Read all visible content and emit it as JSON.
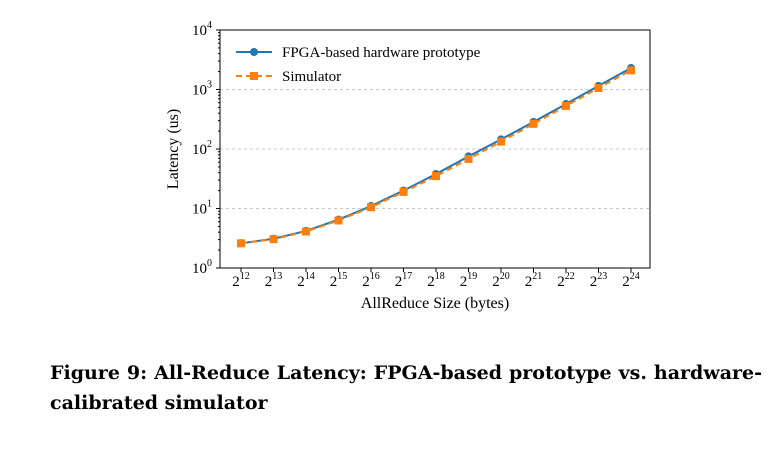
{
  "chart_data": {
    "type": "line",
    "xlabel": "AllReduce Size (bytes)",
    "ylabel": "Latency (us)",
    "x_scale": "log2",
    "y_scale": "log10",
    "categories": [
      "2^12",
      "2^13",
      "2^14",
      "2^15",
      "2^16",
      "2^17",
      "2^18",
      "2^19",
      "2^20",
      "2^21",
      "2^22",
      "2^23",
      "2^24"
    ],
    "x_tick_labels": [
      {
        "base": "2",
        "exp": "12"
      },
      {
        "base": "2",
        "exp": "13"
      },
      {
        "base": "2",
        "exp": "14"
      },
      {
        "base": "2",
        "exp": "15"
      },
      {
        "base": "2",
        "exp": "16"
      },
      {
        "base": "2",
        "exp": "17"
      },
      {
        "base": "2",
        "exp": "18"
      },
      {
        "base": "2",
        "exp": "19"
      },
      {
        "base": "2",
        "exp": "20"
      },
      {
        "base": "2",
        "exp": "21"
      },
      {
        "base": "2",
        "exp": "22"
      },
      {
        "base": "2",
        "exp": "23"
      },
      {
        "base": "2",
        "exp": "24"
      }
    ],
    "y_tick_labels": [
      {
        "base": "10",
        "exp": "0",
        "value": 1
      },
      {
        "base": "10",
        "exp": "1",
        "value": 10
      },
      {
        "base": "10",
        "exp": "2",
        "value": 100
      },
      {
        "base": "10",
        "exp": "3",
        "value": 1000
      },
      {
        "base": "10",
        "exp": "4",
        "value": 10000
      }
    ],
    "ylim": [
      1,
      10000
    ],
    "grid": "horizontal dashed",
    "legend_position": "top-left",
    "series": [
      {
        "name": "FPGA-based hardware prototype",
        "color": "#1f77b4",
        "line_style": "solid",
        "marker": "circle",
        "values": [
          2.6,
          3.1,
          4.2,
          6.5,
          11,
          20,
          38,
          75,
          145,
          285,
          570,
          1150,
          2300
        ]
      },
      {
        "name": "Simulator",
        "color": "#ff7f0e",
        "line_style": "dashed",
        "marker": "square",
        "values": [
          2.6,
          3.05,
          4.1,
          6.3,
          10.5,
          19,
          35,
          68,
          133,
          265,
          530,
          1060,
          2100
        ]
      }
    ]
  },
  "caption": "Figure 9: All-Reduce Latency: FPGA-based prototype vs. hardware-calibrated simulator"
}
